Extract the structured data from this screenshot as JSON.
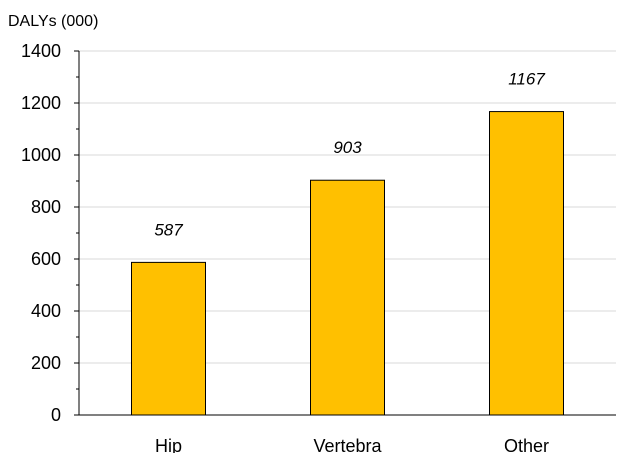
{
  "chart_data": {
    "type": "bar",
    "ylabel": "DALYs (000)",
    "categories": [
      "Hip",
      "Vertebra",
      "Other"
    ],
    "values": [
      587,
      903,
      1167
    ],
    "data_labels": [
      "587",
      "903",
      "1167"
    ],
    "ylim": [
      0,
      1400
    ],
    "yticks": [
      0,
      200,
      400,
      600,
      800,
      1000,
      1200,
      1400
    ],
    "ytick_labels": [
      "0",
      "200",
      "400",
      "600",
      "800",
      "1000",
      "1200",
      "1400"
    ],
    "grid": true,
    "legend": "none",
    "colors": {
      "bar_fill": "#FFC000",
      "bar_stroke": "#000000",
      "grid": "#d9d9d9",
      "axis": "#000000"
    }
  }
}
